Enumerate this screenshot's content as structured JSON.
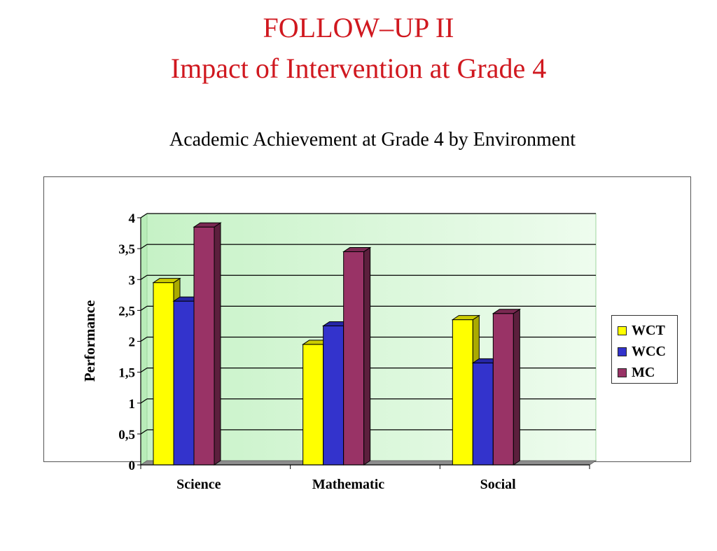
{
  "slide": {
    "title_line_1": "FOLLOW–UP II",
    "title_line_2": "Impact of Intervention at Grade 4"
  },
  "chart_data": {
    "type": "bar",
    "title": "Academic Achievement at Grade 4 by Environment",
    "xlabel": "",
    "ylabel": "Performance",
    "categories": [
      "Science",
      "Mathematic",
      "Social"
    ],
    "series": [
      {
        "name": "WCT",
        "values": [
          2.95,
          1.95,
          2.35
        ],
        "color": "#ffff00",
        "side_color": "#aaaa00",
        "top_color": "#cccc00"
      },
      {
        "name": "WCC",
        "values": [
          2.65,
          2.25,
          1.65
        ],
        "color": "#3333cc",
        "side_color": "#1a1a80",
        "top_color": "#2626a6"
      },
      {
        "name": "MC",
        "values": [
          3.85,
          3.45,
          2.45
        ],
        "color": "#993366",
        "side_color": "#5c1f3d",
        "top_color": "#7a2952"
      }
    ],
    "ylim": [
      0,
      4
    ],
    "yticks": [
      "0",
      "0,5",
      "1",
      "1,5",
      "2",
      "2,5",
      "3",
      "3,5",
      "4"
    ],
    "grid": true,
    "legend_position": "right",
    "plot_background": "#ddf7dd"
  }
}
